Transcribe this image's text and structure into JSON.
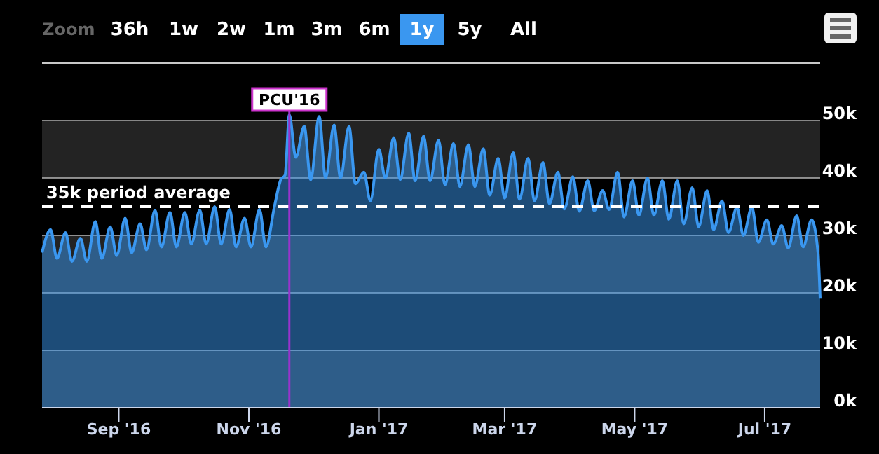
{
  "chart_data": {
    "type": "area",
    "annotations": [
      "Zoom",
      "36h",
      "1w",
      "2w",
      "1m",
      "3m",
      "6m",
      "1y",
      "5y",
      "All"
    ],
    "x": [
      "2016-07-27",
      "2016-07-31",
      "2016-08-03",
      "2016-08-07",
      "2016-08-10",
      "2016-08-14",
      "2016-08-17",
      "2016-08-21",
      "2016-08-24",
      "2016-08-28",
      "2016-08-31",
      "2016-09-04",
      "2016-09-07",
      "2016-09-11",
      "2016-09-14",
      "2016-09-18",
      "2016-09-21",
      "2016-09-25",
      "2016-09-28",
      "2016-10-02",
      "2016-10-05",
      "2016-10-09",
      "2016-10-12",
      "2016-10-16",
      "2016-10-19",
      "2016-10-23",
      "2016-10-26",
      "2016-10-30",
      "2016-11-02",
      "2016-11-06",
      "2016-11-09",
      "2016-11-13",
      "2016-11-16",
      "2016-11-18",
      "2016-11-20",
      "2016-11-23",
      "2016-11-27",
      "2016-11-30",
      "2016-12-04",
      "2016-12-07",
      "2016-12-11",
      "2016-12-14",
      "2016-12-18",
      "2016-12-21",
      "2016-12-25",
      "2016-12-28",
      "2017-01-01",
      "2017-01-04",
      "2017-01-08",
      "2017-01-11",
      "2017-01-15",
      "2017-01-18",
      "2017-01-22",
      "2017-01-25",
      "2017-01-29",
      "2017-02-01",
      "2017-02-05",
      "2017-02-08",
      "2017-02-12",
      "2017-02-15",
      "2017-02-19",
      "2017-02-22",
      "2017-02-26",
      "2017-03-01",
      "2017-03-05",
      "2017-03-08",
      "2017-03-12",
      "2017-03-15",
      "2017-03-19",
      "2017-03-22",
      "2017-03-26",
      "2017-03-29",
      "2017-04-02",
      "2017-04-05",
      "2017-04-09",
      "2017-04-12",
      "2017-04-16",
      "2017-04-19",
      "2017-04-23",
      "2017-04-26",
      "2017-04-30",
      "2017-05-03",
      "2017-05-07",
      "2017-05-10",
      "2017-05-14",
      "2017-05-17",
      "2017-05-21",
      "2017-05-24",
      "2017-05-28",
      "2017-05-31",
      "2017-06-04",
      "2017-06-07",
      "2017-06-11",
      "2017-06-14",
      "2017-06-18",
      "2017-06-21",
      "2017-06-25",
      "2017-06-28",
      "2017-07-02",
      "2017-07-05",
      "2017-07-09",
      "2017-07-12",
      "2017-07-16",
      "2017-07-19",
      "2017-07-23",
      "2017-07-26",
      "2017-07-27"
    ],
    "series": [
      {
        "color": "#3a97f0",
        "values": [
          27000,
          31000,
          26000,
          30500,
          25500,
          29500,
          25500,
          32400,
          26000,
          31500,
          26500,
          33000,
          27000,
          32000,
          27500,
          34400,
          28000,
          34000,
          28000,
          34000,
          28500,
          34400,
          28500,
          35000,
          28500,
          34500,
          28000,
          33000,
          28000,
          34500,
          28000,
          35000,
          39700,
          40500,
          51000,
          43600,
          49000,
          39700,
          50700,
          40000,
          49200,
          40000,
          49000,
          39000,
          41000,
          36000,
          45000,
          40000,
          47000,
          39700,
          47800,
          39500,
          47300,
          39500,
          46600,
          38800,
          46000,
          38500,
          45800,
          38500,
          45100,
          37000,
          43400,
          36500,
          44400,
          36300,
          43400,
          36000,
          42700,
          35500,
          41000,
          34600,
          40200,
          34200,
          39500,
          34300,
          37800,
          34500,
          41000,
          33200,
          39500,
          33500,
          40000,
          33500,
          39500,
          32800,
          39500,
          32000,
          38300,
          31500,
          37800,
          31000,
          36000,
          30500,
          34900,
          30000,
          34900,
          28800,
          32700,
          28500,
          31700,
          27800,
          33400,
          28000,
          32700,
          27000,
          19000
        ]
      }
    ],
    "xlim": [
      "2016-07-27",
      "2017-07-27"
    ],
    "xticks": [
      {
        "value": "2016-09-01",
        "label": "Sep '16"
      },
      {
        "value": "2016-11-01",
        "label": "Nov '16"
      },
      {
        "value": "2017-01-01",
        "label": "Jan '17"
      },
      {
        "value": "2017-03-01",
        "label": "Mar '17"
      },
      {
        "value": "2017-05-01",
        "label": "May '17"
      },
      {
        "value": "2017-07-01",
        "label": "Jul '17"
      }
    ],
    "ylim": [
      0,
      60000
    ],
    "yticks": [
      {
        "value": 0,
        "label": "0k"
      },
      {
        "value": 10000,
        "label": "10k"
      },
      {
        "value": 20000,
        "label": "20k"
      },
      {
        "value": 30000,
        "label": "30k"
      },
      {
        "value": 40000,
        "label": "40k"
      },
      {
        "value": 50000,
        "label": "50k"
      }
    ],
    "grid": "y",
    "bands": [
      {
        "axis": "y",
        "from": 0,
        "to": 10000,
        "color": "#232323"
      },
      {
        "axis": "y",
        "from": 20000,
        "to": 30000,
        "color": "#232323"
      },
      {
        "axis": "y",
        "from": 40000,
        "to": 50000,
        "color": "#232323"
      }
    ],
    "ref_lines": [
      {
        "axis": "y",
        "value": 35000,
        "label": "35k period average",
        "color": "#ffffff",
        "line_style": "dashed"
      },
      {
        "axis": "x",
        "value": "2016-11-20",
        "label": "PCU'16",
        "color": "#9933cc",
        "line_style": "solid"
      }
    ]
  }
}
